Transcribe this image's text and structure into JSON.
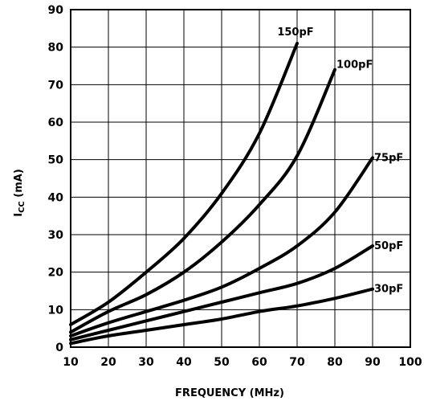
{
  "chart_data": {
    "type": "line",
    "xlabel": "FREQUENCY (MHz)",
    "ylabel_main": "I",
    "ylabel_sub": "CC",
    "ylabel_unit": " (mA)",
    "xlim": [
      10,
      100
    ],
    "ylim": [
      0,
      90
    ],
    "xticks": [
      10,
      20,
      30,
      40,
      50,
      60,
      70,
      80,
      90,
      100
    ],
    "yticks": [
      0,
      10,
      20,
      30,
      40,
      50,
      60,
      70,
      80,
      90
    ],
    "grid": true,
    "series": [
      {
        "name": "150pF",
        "x": [
          10,
          20,
          30,
          40,
          50,
          60,
          70
        ],
        "y": [
          6,
          12,
          20,
          29,
          41,
          57,
          81
        ]
      },
      {
        "name": "100pF",
        "x": [
          10,
          20,
          30,
          40,
          50,
          60,
          70,
          80
        ],
        "y": [
          4,
          9.5,
          14,
          20,
          28,
          38,
          51,
          74
        ]
      },
      {
        "name": "75pF",
        "x": [
          10,
          20,
          30,
          40,
          50,
          60,
          70,
          80,
          90
        ],
        "y": [
          3,
          6.5,
          9.5,
          12.5,
          16,
          21,
          27,
          36,
          50.5
        ]
      },
      {
        "name": "50pF",
        "x": [
          10,
          20,
          30,
          40,
          50,
          60,
          70,
          80,
          90
        ],
        "y": [
          2,
          4.5,
          7,
          9.5,
          12,
          14.5,
          17,
          21,
          27
        ]
      },
      {
        "name": "30pF",
        "x": [
          10,
          20,
          30,
          40,
          50,
          60,
          70,
          80,
          90
        ],
        "y": [
          1,
          3,
          4.5,
          6,
          7.5,
          9.5,
          11,
          13,
          15.5
        ]
      }
    ]
  }
}
